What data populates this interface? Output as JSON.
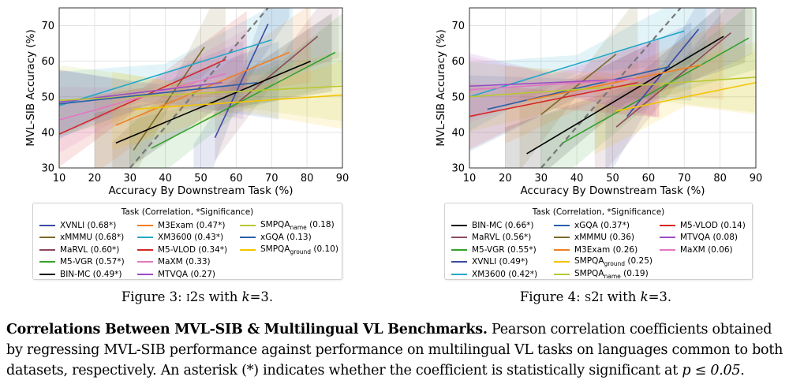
{
  "figure_captions": [
    {
      "label": "Figure 3:",
      "setting": "I2S",
      "detail": "with",
      "k_text": "k",
      "eq": "=3."
    },
    {
      "label": "Figure 4:",
      "setting": "S2I",
      "detail": "with",
      "k_text": "k",
      "eq": "=3."
    }
  ],
  "paragraph": {
    "lead": "Correlations Between MVL-SIB & Multilingual VL Benchmarks.",
    "body": " Pearson correlation coefficients obtained by regressing MVL-SIB performance against performance on multilingual VL tasks on languages common to both datasets, respectively. An asterisk (*) indicates whether the coefficient is statistically significant at ",
    "math": "p ≤ 0.05",
    "end": "."
  },
  "chart_data": [
    {
      "type": "line",
      "xlabel": "Accuracy By Downstream Task (%)",
      "ylabel": "MVL-SIB Accuracy (%)",
      "xlim": [
        10,
        90
      ],
      "ylim": [
        30,
        75
      ],
      "xticks": [
        "10",
        "20",
        "30",
        "40",
        "50",
        "60",
        "70",
        "80",
        "90"
      ],
      "yticks": [
        "30",
        "40",
        "50",
        "60",
        "70"
      ],
      "grid": true,
      "reference_line": {
        "style": "dashed",
        "color": "#777777",
        "x": [
          30,
          69
        ],
        "y": [
          30,
          75
        ]
      },
      "legend_title": "Task (Correlation, *Significance)",
      "series": [
        {
          "name": "XVNLI (0.68*)",
          "color": "#3b4ba3",
          "x": [
            54,
            69
          ],
          "y": [
            38.5,
            70.5
          ]
        },
        {
          "name": "xMMMU (0.68*)",
          "color": "#7a6a2a",
          "x": [
            31,
            51
          ],
          "y": [
            35,
            64
          ]
        },
        {
          "name": "MaRVL (0.60*)",
          "color": "#8b4a5a",
          "x": [
            60,
            83
          ],
          "y": [
            48,
            67
          ]
        },
        {
          "name": "M5-VGR (0.57*)",
          "color": "#33a02c",
          "x": [
            36,
            88
          ],
          "y": [
            35.5,
            62.5
          ]
        },
        {
          "name": "BIN-MC (0.49*)",
          "color": "#000000",
          "x": [
            26,
            81
          ],
          "y": [
            37,
            60
          ]
        },
        {
          "name": "M3Exam (0.47*)",
          "color": "#f07f22",
          "x": [
            26,
            75
          ],
          "y": [
            42,
            62.5
          ]
        },
        {
          "name": "XM3600 (0.43*)",
          "color": "#23a8c8",
          "x": [
            10,
            70
          ],
          "y": [
            47.5,
            66
          ]
        },
        {
          "name": "M5-VLOD (0.34*)",
          "color": "#d62728",
          "x": [
            10,
            57
          ],
          "y": [
            39.5,
            60.5
          ]
        },
        {
          "name": "MaXM (0.33)",
          "color": "#e377c2",
          "x": [
            10,
            57
          ],
          "y": [
            43.5,
            56.5
          ]
        },
        {
          "name": "MTVQA (0.27)",
          "color": "#9a4dc4",
          "x": [
            10,
            56
          ],
          "y": [
            48.5,
            54
          ]
        },
        {
          "name": "SMPQA",
          "name_sub": "name",
          "name_rest": " (0.18)",
          "color": "#b8c832",
          "x": [
            10,
            90
          ],
          "y": [
            49,
            53
          ]
        },
        {
          "name": "xGQA (0.13)",
          "color": "#2a5fa8",
          "x": [
            10,
            66
          ],
          "y": [
            48,
            54
          ]
        },
        {
          "name": "SMPQA",
          "name_sub": "ground",
          "name_rest": " (0.10)",
          "color": "#f2c500",
          "x": [
            31,
            90
          ],
          "y": [
            46.5,
            50.5
          ]
        }
      ]
    },
    {
      "type": "line",
      "xlabel": "Accuracy By Downstream Task (%)",
      "ylabel": "MVL-SIB Accuracy (%)",
      "xlim": [
        10,
        90
      ],
      "ylim": [
        30,
        75
      ],
      "xticks": [
        "10",
        "20",
        "30",
        "40",
        "50",
        "60",
        "70",
        "80",
        "90"
      ],
      "yticks": [
        "30",
        "40",
        "50",
        "60",
        "70"
      ],
      "grid": true,
      "reference_line": {
        "style": "dashed",
        "color": "#777777",
        "x": [
          30,
          69
        ],
        "y": [
          30,
          75
        ]
      },
      "legend_title": "Task (Correlation, *Significance)",
      "series": [
        {
          "name": "BIN-MC (0.66*)",
          "color": "#000000",
          "x": [
            26,
            81
          ],
          "y": [
            34,
            67
          ]
        },
        {
          "name": "MaRVL (0.56*)",
          "color": "#8b4a5a",
          "x": [
            51,
            83
          ],
          "y": [
            41.5,
            68
          ]
        },
        {
          "name": "M5-VGR (0.55*)",
          "color": "#33a02c",
          "x": [
            36,
            88
          ],
          "y": [
            37,
            66.5
          ]
        },
        {
          "name": "XVNLI (0.49*)",
          "color": "#3b4ba3",
          "x": [
            54,
            74
          ],
          "y": [
            44.5,
            69
          ]
        },
        {
          "name": "XM3600 (0.42*)",
          "color": "#23a8c8",
          "x": [
            10,
            70
          ],
          "y": [
            50,
            68.5
          ]
        },
        {
          "name": "xGQA (0.37*)",
          "color": "#2a5fa8",
          "x": [
            15,
            66
          ],
          "y": [
            46.5,
            58.5
          ]
        },
        {
          "name": "xMMMU (0.36)",
          "color": "#7a6a2a",
          "x": [
            30,
            51
          ],
          "y": [
            45,
            62
          ]
        },
        {
          "name": "M3Exam (0.26)",
          "color": "#f07f22",
          "x": [
            26,
            75
          ],
          "y": [
            49,
            59
          ]
        },
        {
          "name": "SMPQA",
          "name_sub": "ground",
          "name_rest": " (0.25)",
          "color": "#f2c500",
          "x": [
            51,
            90
          ],
          "y": [
            46,
            54
          ]
        },
        {
          "name": "SMPQA",
          "name_sub": "name",
          "name_rest": " (0.19)",
          "color": "#b8c832",
          "x": [
            10,
            90
          ],
          "y": [
            50,
            55.5
          ]
        },
        {
          "name": "M5-VLOD (0.14)",
          "color": "#d62728",
          "x": [
            10,
            57
          ],
          "y": [
            44.5,
            54
          ]
        },
        {
          "name": "MTVQA (0.08)",
          "color": "#9a4dc4",
          "x": [
            10,
            56
          ],
          "y": [
            53,
            55
          ]
        },
        {
          "name": "MaXM (0.06)",
          "color": "#e377c2",
          "x": [
            10,
            57
          ],
          "y": [
            52,
            55
          ]
        }
      ]
    }
  ]
}
